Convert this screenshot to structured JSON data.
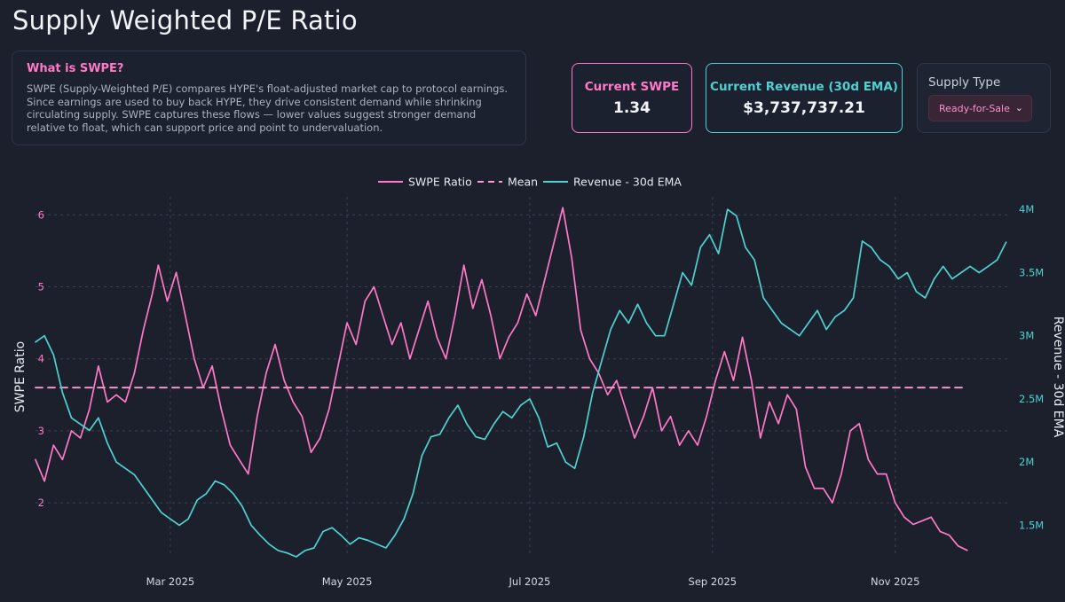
{
  "page": {
    "title": "Supply Weighted P/E Ratio"
  },
  "info": {
    "heading": "What is SWPE?",
    "body": "SWPE (Supply-Weighted P/E) compares HYPE's float-adjusted market cap to protocol earnings. Since earnings are used to buy back HYPE, they drive consistent demand while shrinking circulating supply. SWPE captures these flows — lower values suggest stronger demand relative to float, which can support price and point to undervaluation."
  },
  "stats": {
    "swpe_label": "Current SWPE",
    "swpe_value": "1.34",
    "revenue_label": "Current Revenue (30d EMA)",
    "revenue_value": "$3,737,737.21"
  },
  "supply": {
    "label": "Supply Type",
    "selected": "Ready-for-Sale"
  },
  "colors": {
    "swpe": "#ff79c6",
    "revenue": "#4fd1d0",
    "background": "#1b202c",
    "grid": "#3a4152"
  },
  "chart_data": {
    "type": "line",
    "title": "",
    "xlabel": "",
    "ylabel": "SWPE Ratio",
    "y2label": "Revenue - 30d EMA",
    "legend_position": "top-center",
    "grid": true,
    "x_range": [
      "2025-01-01",
      "2025-11-22"
    ],
    "ylim": [
      1.25,
      6.25
    ],
    "y2lim": [
      1250000,
      4100000
    ],
    "x_ticks": [
      {
        "date": "2025-02-15",
        "label": "Mar 2025"
      },
      {
        "date": "2025-04-15",
        "label": "May 2025"
      },
      {
        "date": "2025-06-15",
        "label": "Jul 2025"
      },
      {
        "date": "2025-08-15",
        "label": "Sep 2025"
      },
      {
        "date": "2025-10-15",
        "label": "Nov 2025"
      }
    ],
    "y_ticks": [
      {
        "v": 2,
        "label": "2"
      },
      {
        "v": 3,
        "label": "3"
      },
      {
        "v": 4,
        "label": "4"
      },
      {
        "v": 5,
        "label": "5"
      },
      {
        "v": 6,
        "label": "6"
      }
    ],
    "y2_ticks": [
      {
        "v": 1500000,
        "label": "1.5M"
      },
      {
        "v": 2000000,
        "label": "2M"
      },
      {
        "v": 2500000,
        "label": "2.5M"
      },
      {
        "v": 3000000,
        "label": "3M"
      },
      {
        "v": 3500000,
        "label": "3.5M"
      },
      {
        "v": 4000000,
        "label": "4M"
      }
    ],
    "mean": 3.6,
    "series": [
      {
        "name": "SWPE Ratio",
        "axis": "left",
        "style": "solid",
        "points": [
          [
            "2025-01-01",
            2.6
          ],
          [
            "2025-01-04",
            2.3
          ],
          [
            "2025-01-07",
            2.8
          ],
          [
            "2025-01-10",
            2.6
          ],
          [
            "2025-01-13",
            3.0
          ],
          [
            "2025-01-16",
            2.9
          ],
          [
            "2025-01-19",
            3.3
          ],
          [
            "2025-01-22",
            3.9
          ],
          [
            "2025-01-25",
            3.4
          ],
          [
            "2025-01-28",
            3.5
          ],
          [
            "2025-01-31",
            3.4
          ],
          [
            "2025-02-03",
            3.8
          ],
          [
            "2025-02-06",
            4.4
          ],
          [
            "2025-02-09",
            4.9
          ],
          [
            "2025-02-11",
            5.3
          ],
          [
            "2025-02-14",
            4.8
          ],
          [
            "2025-02-17",
            5.2
          ],
          [
            "2025-02-20",
            4.6
          ],
          [
            "2025-02-23",
            4.0
          ],
          [
            "2025-02-26",
            3.6
          ],
          [
            "2025-03-01",
            3.9
          ],
          [
            "2025-03-04",
            3.3
          ],
          [
            "2025-03-07",
            2.8
          ],
          [
            "2025-03-10",
            2.6
          ],
          [
            "2025-03-13",
            2.4
          ],
          [
            "2025-03-16",
            3.2
          ],
          [
            "2025-03-19",
            3.8
          ],
          [
            "2025-03-22",
            4.2
          ],
          [
            "2025-03-25",
            3.7
          ],
          [
            "2025-03-28",
            3.4
          ],
          [
            "2025-03-31",
            3.2
          ],
          [
            "2025-04-03",
            2.7
          ],
          [
            "2025-04-06",
            2.9
          ],
          [
            "2025-04-09",
            3.3
          ],
          [
            "2025-04-12",
            3.9
          ],
          [
            "2025-04-15",
            4.5
          ],
          [
            "2025-04-18",
            4.2
          ],
          [
            "2025-04-21",
            4.8
          ],
          [
            "2025-04-24",
            5.0
          ],
          [
            "2025-04-27",
            4.6
          ],
          [
            "2025-04-30",
            4.2
          ],
          [
            "2025-05-03",
            4.5
          ],
          [
            "2025-05-06",
            4.0
          ],
          [
            "2025-05-09",
            4.4
          ],
          [
            "2025-05-12",
            4.8
          ],
          [
            "2025-05-15",
            4.3
          ],
          [
            "2025-05-18",
            4.0
          ],
          [
            "2025-05-21",
            4.6
          ],
          [
            "2025-05-24",
            5.3
          ],
          [
            "2025-05-27",
            4.7
          ],
          [
            "2025-05-30",
            5.1
          ],
          [
            "2025-06-02",
            4.6
          ],
          [
            "2025-06-05",
            4.0
          ],
          [
            "2025-06-08",
            4.3
          ],
          [
            "2025-06-11",
            4.5
          ],
          [
            "2025-06-14",
            4.9
          ],
          [
            "2025-06-17",
            4.6
          ],
          [
            "2025-06-20",
            5.1
          ],
          [
            "2025-06-23",
            5.6
          ],
          [
            "2025-06-26",
            6.1
          ],
          [
            "2025-06-29",
            5.4
          ],
          [
            "2025-07-02",
            4.4
          ],
          [
            "2025-07-05",
            4.0
          ],
          [
            "2025-07-08",
            3.8
          ],
          [
            "2025-07-11",
            3.5
          ],
          [
            "2025-07-14",
            3.7
          ],
          [
            "2025-07-17",
            3.3
          ],
          [
            "2025-07-20",
            2.9
          ],
          [
            "2025-07-23",
            3.2
          ],
          [
            "2025-07-26",
            3.6
          ],
          [
            "2025-07-29",
            3.0
          ],
          [
            "2025-08-01",
            3.2
          ],
          [
            "2025-08-04",
            2.8
          ],
          [
            "2025-08-07",
            3.0
          ],
          [
            "2025-08-10",
            2.8
          ],
          [
            "2025-08-13",
            3.2
          ],
          [
            "2025-08-16",
            3.7
          ],
          [
            "2025-08-19",
            4.1
          ],
          [
            "2025-08-22",
            3.7
          ],
          [
            "2025-08-25",
            4.3
          ],
          [
            "2025-08-28",
            3.7
          ],
          [
            "2025-08-31",
            2.9
          ],
          [
            "2025-09-03",
            3.4
          ],
          [
            "2025-09-06",
            3.1
          ],
          [
            "2025-09-09",
            3.5
          ],
          [
            "2025-09-12",
            3.3
          ],
          [
            "2025-09-15",
            2.5
          ],
          [
            "2025-09-18",
            2.2
          ],
          [
            "2025-09-21",
            2.2
          ],
          [
            "2025-09-24",
            2.0
          ],
          [
            "2025-09-27",
            2.4
          ],
          [
            "2025-09-30",
            3.0
          ],
          [
            "2025-10-03",
            3.1
          ],
          [
            "2025-10-06",
            2.6
          ],
          [
            "2025-10-09",
            2.4
          ],
          [
            "2025-10-12",
            2.4
          ],
          [
            "2025-10-15",
            2.0
          ],
          [
            "2025-10-18",
            1.8
          ],
          [
            "2025-10-21",
            1.7
          ],
          [
            "2025-10-24",
            1.75
          ],
          [
            "2025-10-27",
            1.8
          ],
          [
            "2025-10-30",
            1.6
          ],
          [
            "2025-11-02",
            1.55
          ],
          [
            "2025-11-05",
            1.4
          ],
          [
            "2025-11-08",
            1.34
          ]
        ]
      },
      {
        "name": "Mean",
        "axis": "left",
        "style": "dashed",
        "points": [
          [
            "2025-01-01",
            3.6
          ],
          [
            "2025-11-08",
            3.6
          ]
        ]
      },
      {
        "name": "Revenue - 30d EMA",
        "axis": "right",
        "style": "solid",
        "points": [
          [
            "2025-01-01",
            2.95
          ],
          [
            "2025-01-04",
            3.0
          ],
          [
            "2025-01-07",
            2.85
          ],
          [
            "2025-01-10",
            2.55
          ],
          [
            "2025-01-13",
            2.35
          ],
          [
            "2025-01-16",
            2.3
          ],
          [
            "2025-01-19",
            2.25
          ],
          [
            "2025-01-22",
            2.35
          ],
          [
            "2025-01-25",
            2.15
          ],
          [
            "2025-01-28",
            2.0
          ],
          [
            "2025-01-31",
            1.95
          ],
          [
            "2025-02-03",
            1.9
          ],
          [
            "2025-02-06",
            1.8
          ],
          [
            "2025-02-09",
            1.7
          ],
          [
            "2025-02-12",
            1.6
          ],
          [
            "2025-02-15",
            1.55
          ],
          [
            "2025-02-18",
            1.5
          ],
          [
            "2025-02-21",
            1.55
          ],
          [
            "2025-02-24",
            1.7
          ],
          [
            "2025-02-27",
            1.75
          ],
          [
            "2025-03-02",
            1.85
          ],
          [
            "2025-03-05",
            1.82
          ],
          [
            "2025-03-08",
            1.75
          ],
          [
            "2025-03-11",
            1.65
          ],
          [
            "2025-03-14",
            1.5
          ],
          [
            "2025-03-17",
            1.42
          ],
          [
            "2025-03-20",
            1.35
          ],
          [
            "2025-03-23",
            1.3
          ],
          [
            "2025-03-26",
            1.28
          ],
          [
            "2025-03-29",
            1.25
          ],
          [
            "2025-04-01",
            1.3
          ],
          [
            "2025-04-04",
            1.32
          ],
          [
            "2025-04-07",
            1.45
          ],
          [
            "2025-04-10",
            1.48
          ],
          [
            "2025-04-13",
            1.42
          ],
          [
            "2025-04-16",
            1.35
          ],
          [
            "2025-04-19",
            1.4
          ],
          [
            "2025-04-22",
            1.38
          ],
          [
            "2025-04-25",
            1.35
          ],
          [
            "2025-04-28",
            1.32
          ],
          [
            "2025-05-01",
            1.42
          ],
          [
            "2025-05-04",
            1.55
          ],
          [
            "2025-05-07",
            1.75
          ],
          [
            "2025-05-10",
            2.05
          ],
          [
            "2025-05-13",
            2.2
          ],
          [
            "2025-05-16",
            2.22
          ],
          [
            "2025-05-19",
            2.35
          ],
          [
            "2025-05-22",
            2.45
          ],
          [
            "2025-05-25",
            2.3
          ],
          [
            "2025-05-28",
            2.2
          ],
          [
            "2025-05-31",
            2.18
          ],
          [
            "2025-06-03",
            2.3
          ],
          [
            "2025-06-06",
            2.4
          ],
          [
            "2025-06-09",
            2.35
          ],
          [
            "2025-06-12",
            2.45
          ],
          [
            "2025-06-15",
            2.5
          ],
          [
            "2025-06-18",
            2.35
          ],
          [
            "2025-06-21",
            2.12
          ],
          [
            "2025-06-24",
            2.15
          ],
          [
            "2025-06-27",
            2.0
          ],
          [
            "2025-06-30",
            1.95
          ],
          [
            "2025-07-03",
            2.2
          ],
          [
            "2025-07-06",
            2.55
          ],
          [
            "2025-07-09",
            2.8
          ],
          [
            "2025-07-12",
            3.05
          ],
          [
            "2025-07-15",
            3.2
          ],
          [
            "2025-07-18",
            3.1
          ],
          [
            "2025-07-21",
            3.25
          ],
          [
            "2025-07-24",
            3.1
          ],
          [
            "2025-07-27",
            3.0
          ],
          [
            "2025-07-30",
            3.0
          ],
          [
            "2025-08-02",
            3.25
          ],
          [
            "2025-08-05",
            3.5
          ],
          [
            "2025-08-08",
            3.4
          ],
          [
            "2025-08-11",
            3.7
          ],
          [
            "2025-08-14",
            3.8
          ],
          [
            "2025-08-17",
            3.65
          ],
          [
            "2025-08-20",
            4.0
          ],
          [
            "2025-08-23",
            3.95
          ],
          [
            "2025-08-26",
            3.7
          ],
          [
            "2025-08-29",
            3.6
          ],
          [
            "2025-09-01",
            3.3
          ],
          [
            "2025-09-04",
            3.2
          ],
          [
            "2025-09-07",
            3.1
          ],
          [
            "2025-09-10",
            3.05
          ],
          [
            "2025-09-13",
            3.0
          ],
          [
            "2025-09-16",
            3.1
          ],
          [
            "2025-09-19",
            3.2
          ],
          [
            "2025-09-22",
            3.05
          ],
          [
            "2025-09-25",
            3.15
          ],
          [
            "2025-09-28",
            3.2
          ],
          [
            "2025-10-01",
            3.3
          ],
          [
            "2025-10-04",
            3.75
          ],
          [
            "2025-10-07",
            3.7
          ],
          [
            "2025-10-10",
            3.6
          ],
          [
            "2025-10-13",
            3.55
          ],
          [
            "2025-10-16",
            3.45
          ],
          [
            "2025-10-19",
            3.5
          ],
          [
            "2025-10-22",
            3.35
          ],
          [
            "2025-10-25",
            3.3
          ],
          [
            "2025-10-28",
            3.45
          ],
          [
            "2025-10-31",
            3.55
          ],
          [
            "2025-11-03",
            3.45
          ],
          [
            "2025-11-06",
            3.5
          ],
          [
            "2025-11-09",
            3.55
          ],
          [
            "2025-11-12",
            3.5
          ],
          [
            "2025-11-15",
            3.55
          ],
          [
            "2025-11-18",
            3.6
          ],
          [
            "2025-11-21",
            3.74
          ]
        ],
        "units": "millions USD"
      }
    ]
  }
}
